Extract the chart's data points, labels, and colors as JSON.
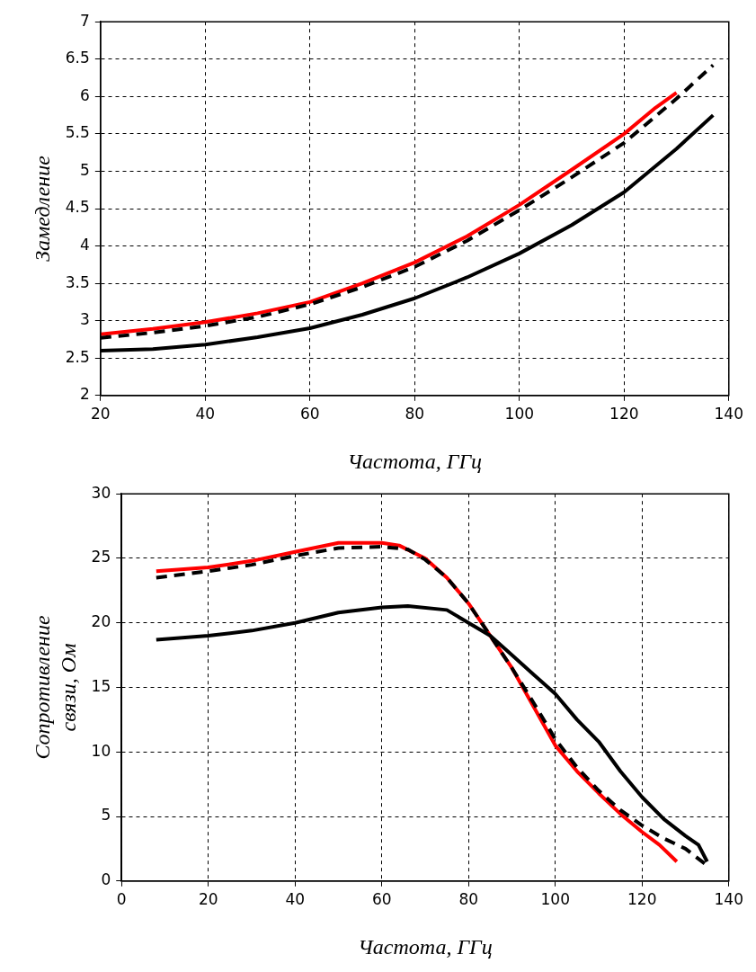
{
  "chart_data": [
    {
      "type": "line",
      "xlabel": "Частота, ГГц",
      "ylabel": "Замедление",
      "xlim": [
        20,
        140
      ],
      "ylim": [
        2,
        7
      ],
      "xticks": [
        20,
        40,
        60,
        80,
        100,
        120,
        140
      ],
      "yticks": [
        2,
        2.5,
        3,
        3.5,
        4,
        4.5,
        5,
        5.5,
        6,
        6.5,
        7
      ],
      "grid": true,
      "legend": false,
      "marker": "none",
      "series": [
        {
          "color": "#000000",
          "line_style": "solid",
          "x": [
            20,
            30,
            40,
            50,
            60,
            70,
            80,
            90,
            100,
            110,
            120,
            130,
            137
          ],
          "values": [
            2.6,
            2.62,
            2.68,
            2.78,
            2.9,
            3.08,
            3.3,
            3.58,
            3.9,
            4.28,
            4.72,
            5.3,
            5.75
          ]
        },
        {
          "color": "#000000",
          "line_style": "dashed",
          "x": [
            20,
            30,
            40,
            50,
            60,
            70,
            80,
            90,
            100,
            110,
            120,
            130,
            137
          ],
          "values": [
            2.77,
            2.84,
            2.93,
            3.05,
            3.22,
            3.45,
            3.72,
            4.07,
            4.48,
            4.92,
            5.38,
            5.97,
            6.42
          ]
        },
        {
          "color": "#ff0000",
          "line_style": "solid",
          "x": [
            20,
            30,
            40,
            50,
            60,
            70,
            80,
            90,
            100,
            110,
            120,
            126,
            130
          ],
          "values": [
            2.82,
            2.89,
            2.98,
            3.1,
            3.25,
            3.5,
            3.78,
            4.13,
            4.55,
            5.02,
            5.5,
            5.85,
            6.05
          ]
        }
      ]
    },
    {
      "type": "line",
      "xlabel": "Частота, ГГц",
      "ylabel": "Сопротивление связи, Ом",
      "xlim": [
        0,
        140
      ],
      "ylim": [
        0,
        30
      ],
      "xticks": [
        0,
        20,
        40,
        60,
        80,
        100,
        120,
        140
      ],
      "yticks": [
        0,
        5,
        10,
        15,
        20,
        25,
        30
      ],
      "grid": true,
      "legend": false,
      "marker": "none",
      "series": [
        {
          "color": "#000000",
          "line_style": "solid",
          "x": [
            8,
            20,
            30,
            40,
            50,
            60,
            66,
            75,
            80,
            85,
            90,
            95,
            100,
            105,
            110,
            115,
            120,
            125,
            130,
            133,
            135
          ],
          "values": [
            18.7,
            19,
            19.4,
            20,
            20.8,
            21.2,
            21.3,
            21,
            20,
            19,
            17.5,
            16,
            14.5,
            12.5,
            10.8,
            8.5,
            6.5,
            4.8,
            3.5,
            2.8,
            1.5
          ]
        },
        {
          "color": "#000000",
          "line_style": "dashed",
          "x": [
            8,
            20,
            30,
            40,
            50,
            60,
            66,
            70,
            75,
            80,
            85,
            90,
            95,
            100,
            105,
            110,
            115,
            120,
            125,
            130,
            135
          ],
          "values": [
            23.5,
            24,
            24.5,
            25.2,
            25.8,
            25.9,
            25.7,
            24.9,
            23.5,
            21.5,
            19,
            16.5,
            13.8,
            11,
            8.8,
            7,
            5.5,
            4.3,
            3.3,
            2.5,
            1.2
          ]
        },
        {
          "color": "#ff0000",
          "line_style": "solid",
          "x": [
            8,
            20,
            30,
            40,
            50,
            60,
            64,
            70,
            75,
            80,
            85,
            90,
            95,
            100,
            105,
            110,
            115,
            120,
            124,
            128
          ],
          "values": [
            24,
            24.3,
            24.8,
            25.5,
            26.2,
            26.2,
            26,
            25,
            23.5,
            21.5,
            19,
            16.5,
            13.5,
            10.5,
            8.5,
            6.8,
            5.2,
            3.8,
            2.8,
            1.5
          ]
        }
      ]
    }
  ]
}
